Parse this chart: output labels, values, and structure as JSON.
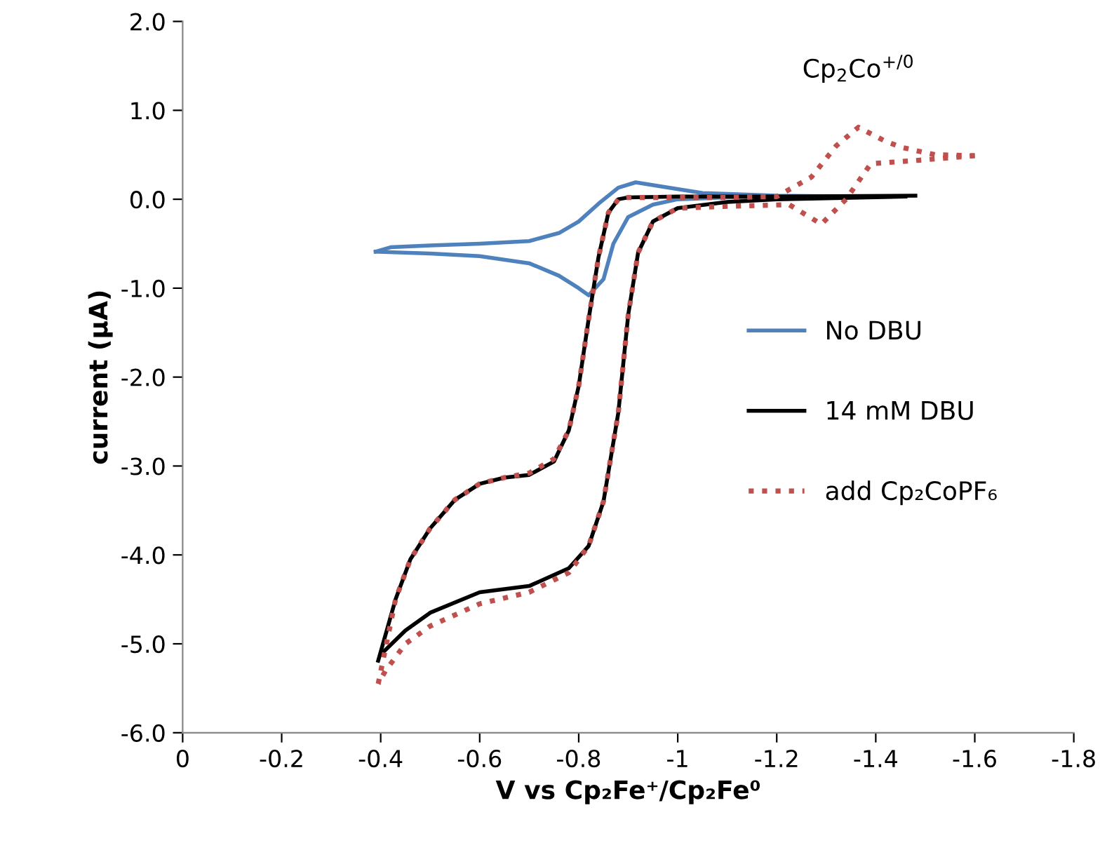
{
  "chart_data": {
    "type": "line",
    "xlabel": "V vs Cp₂Fe⁺/Cp₂Fe⁰",
    "ylabel": "current (μA)",
    "xlim": [
      0,
      -1.8
    ],
    "xticks": [
      0,
      -0.2,
      -0.4,
      -0.6,
      -0.8,
      -1,
      -1.2,
      -1.4,
      -1.6,
      -1.8
    ],
    "ylim": [
      -6,
      2
    ],
    "yticks": [
      {
        "value": -6,
        "label": "-6.0"
      },
      {
        "value": -5,
        "label": "-5.0"
      },
      {
        "value": -4,
        "label": "-4.0"
      },
      {
        "value": -3,
        "label": "-3.0"
      },
      {
        "value": -2,
        "label": "-2.0"
      },
      {
        "value": -1,
        "label": "-1.0"
      },
      {
        "value": 0,
        "label": "0.0"
      },
      {
        "value": 1,
        "label": "1.0"
      },
      {
        "value": 2,
        "label": "2.0"
      }
    ],
    "grid": false,
    "legend": "right",
    "marker": "none",
    "annotations": [
      {
        "text": "Cp$_{2}$Co$^{+/0}$",
        "x": -1.365,
        "y": 0.81
      }
    ],
    "series": [
      {
        "name": "No DBU",
        "color": "#4f81bd",
        "line_style": "solid",
        "x": [
          -0.39,
          -0.5,
          -0.6,
          -0.7,
          -0.76,
          -0.8,
          -0.82,
          -0.85,
          -0.87,
          -0.9,
          -0.95,
          -1.0,
          -1.1,
          -1.2,
          -1.3,
          -1.35
        ],
        "values": [
          -0.59,
          -0.61,
          -0.64,
          -0.72,
          -0.86,
          -1.0,
          -1.08,
          -0.9,
          -0.5,
          -0.2,
          -0.06,
          0.0,
          0.02,
          0.03,
          0.03,
          0.03
        ]
      },
      {
        "color": "#4f81bd",
        "line_style": "solid",
        "x": [
          -1.35,
          -1.2,
          -1.05,
          -0.97,
          -0.915,
          -0.88,
          -0.84,
          -0.8,
          -0.76,
          -0.7,
          -0.6,
          -0.5,
          -0.42,
          -0.39
        ],
        "values": [
          0.03,
          0.04,
          0.07,
          0.14,
          0.19,
          0.13,
          -0.05,
          -0.25,
          -0.38,
          -0.47,
          -0.5,
          -0.52,
          -0.54,
          -0.59
        ]
      },
      {
        "name": "14 mM DBU",
        "color": "#000000",
        "line_style": "solid",
        "x": [
          -0.395,
          -0.43,
          -0.46,
          -0.5,
          -0.55,
          -0.6,
          -0.65,
          -0.7,
          -0.75,
          -0.78,
          -0.8,
          -0.82,
          -0.84,
          -0.86,
          -0.88,
          -0.9,
          -1.0,
          -1.2,
          -1.48
        ],
        "values": [
          -5.19,
          -4.5,
          -4.05,
          -3.7,
          -3.38,
          -3.2,
          -3.13,
          -3.1,
          -2.95,
          -2.6,
          -2.1,
          -1.35,
          -0.65,
          -0.15,
          0.0,
          0.02,
          0.03,
          0.03,
          0.04
        ]
      },
      {
        "color": "#000000",
        "line_style": "solid",
        "x": [
          -1.46,
          -1.2,
          -1.1,
          -1.0,
          -0.95,
          -0.92,
          -0.9,
          -0.88,
          -0.85,
          -0.82,
          -0.78,
          -0.7,
          -0.6,
          -0.5,
          -0.45,
          -0.4
        ],
        "values": [
          0.03,
          0.0,
          -0.03,
          -0.1,
          -0.25,
          -0.6,
          -1.3,
          -2.4,
          -3.4,
          -3.9,
          -4.15,
          -4.35,
          -4.42,
          -4.65,
          -4.85,
          -5.12
        ]
      },
      {
        "name": "add Cp₂CoPF₆",
        "color": "#c0504d",
        "line_style": "dotted",
        "x": [
          -0.395,
          -0.43,
          -0.46,
          -0.5,
          -0.55,
          -0.6,
          -0.65,
          -0.7,
          -0.75,
          -0.78,
          -0.8,
          -0.82,
          -0.84,
          -0.86,
          -0.88,
          -0.9,
          -1.0,
          -1.1,
          -1.2,
          -1.27,
          -1.32,
          -1.365,
          -1.42,
          -1.455,
          -1.52,
          -1.6
        ],
        "values": [
          -5.45,
          -4.5,
          -4.05,
          -3.7,
          -3.38,
          -3.2,
          -3.13,
          -3.08,
          -2.92,
          -2.6,
          -2.1,
          -1.35,
          -0.65,
          -0.15,
          0.0,
          0.02,
          0.02,
          0.02,
          0.03,
          0.25,
          0.6,
          0.81,
          0.65,
          0.58,
          0.5,
          0.49
        ]
      },
      {
        "color": "#c0504d",
        "line_style": "dotted",
        "x": [
          -1.6,
          -1.49,
          -1.39,
          -1.34,
          -1.29,
          -1.225,
          -1.1,
          -1.0,
          -0.95,
          -0.92,
          -0.9,
          -0.88,
          -0.85,
          -0.82,
          -0.78,
          -0.7,
          -0.6,
          -0.5,
          -0.45,
          -0.41,
          -0.395
        ],
        "values": [
          0.49,
          0.44,
          0.4,
          0.0,
          -0.28,
          -0.06,
          -0.08,
          -0.1,
          -0.25,
          -0.6,
          -1.3,
          -2.4,
          -3.4,
          -3.9,
          -4.2,
          -4.42,
          -4.55,
          -4.8,
          -5.0,
          -5.3,
          -5.45
        ]
      }
    ]
  }
}
